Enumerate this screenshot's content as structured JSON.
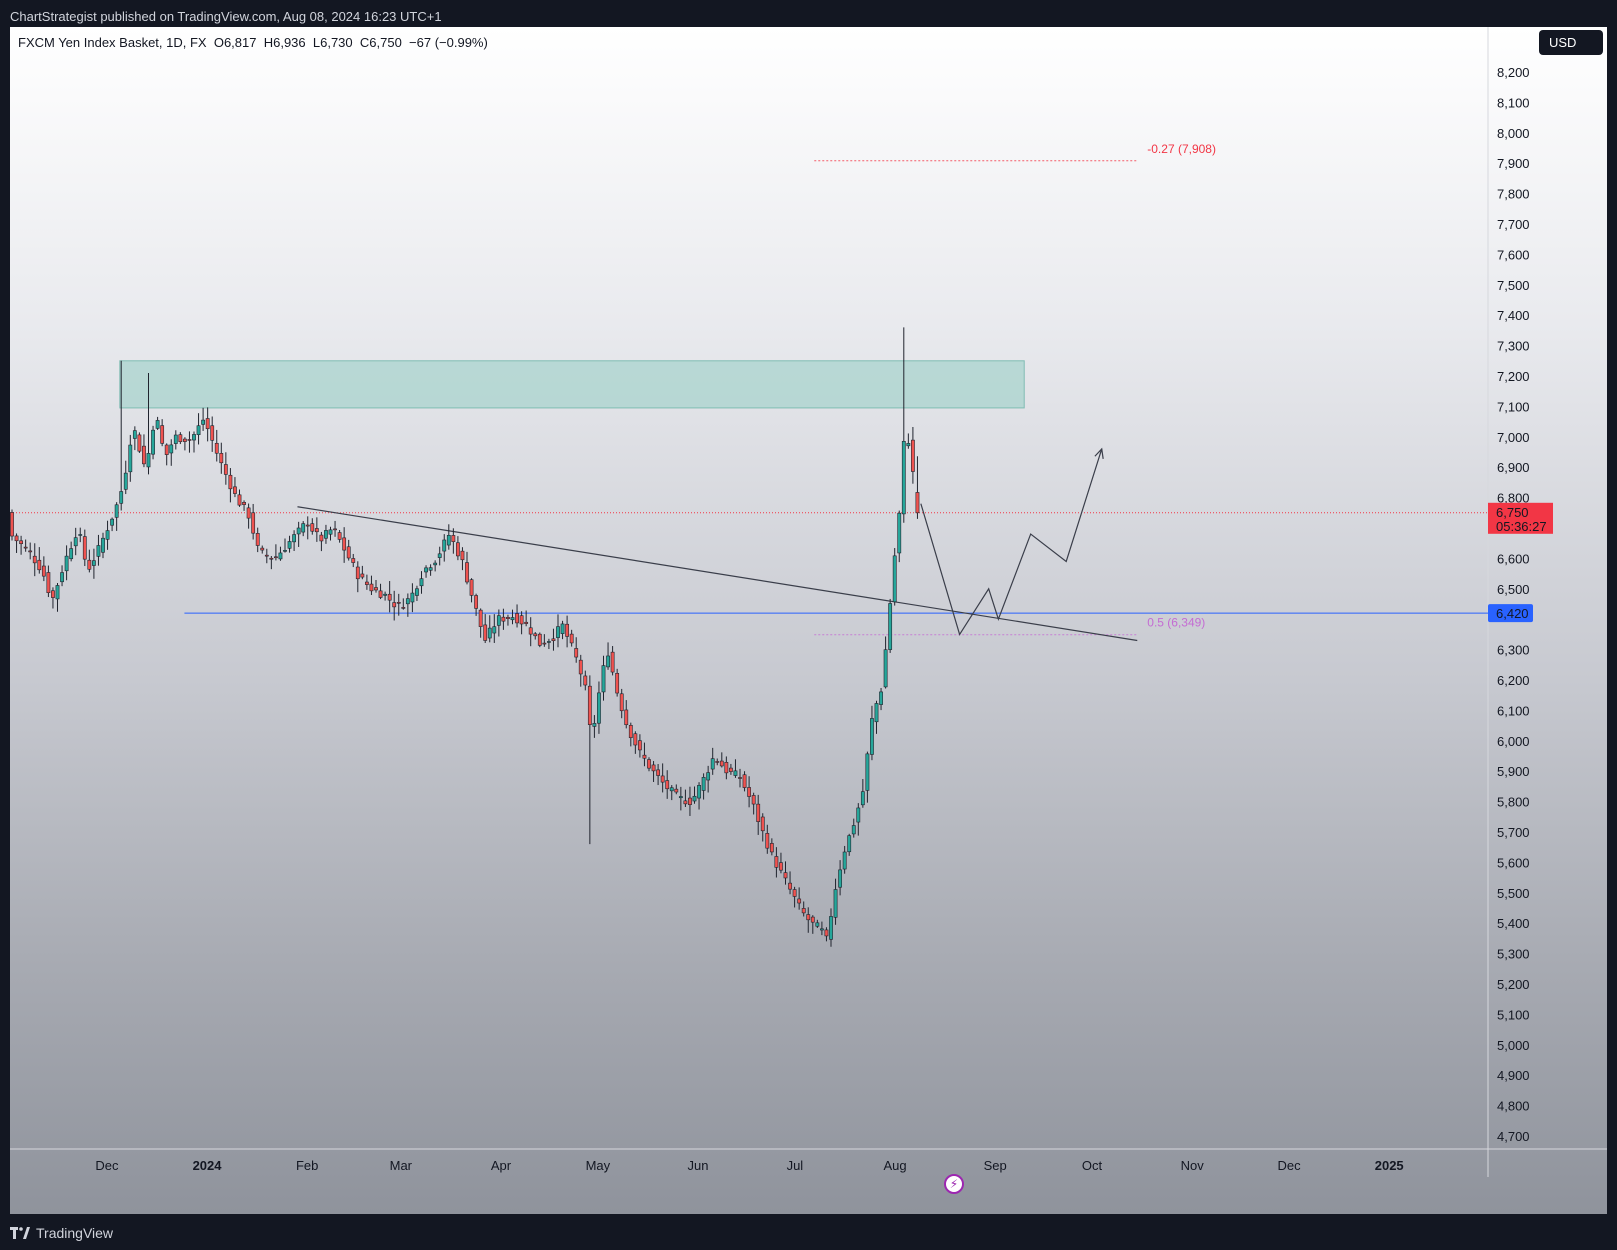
{
  "header": {
    "published_text": "ChartStrategist published on TradingView.com, Aug 08, 2024 16:23 UTC+1"
  },
  "footer": {
    "brand": "TradingView"
  },
  "legend": {
    "symbol": "FXCM Yen Index Basket, 1D, FX",
    "open": "O6,817",
    "high": "H6,936",
    "low": "L6,730",
    "close": "C6,750",
    "change": "−67 (−0.99%)"
  },
  "currency": "USD",
  "colors": {
    "up": "#26a69a",
    "down": "#ef5350",
    "zone": "#9fd1c9",
    "support": "#2962ff",
    "fib_neg": "#f23645",
    "fib_half": "#c46cd3",
    "price_badge": "#f23645",
    "support_badge": "#2962ff"
  },
  "chart_data": {
    "type": "candlestick",
    "y_axis": {
      "min": 4700,
      "max": 8200,
      "ticks": [
        "8,200",
        "8,100",
        "8,000",
        "7,900",
        "7,800",
        "7,700",
        "7,600",
        "7,500",
        "7,400",
        "7,300",
        "7,200",
        "7,100",
        "7,000",
        "6,900",
        "6,800",
        "6,600",
        "6,500",
        "6,300",
        "6,200",
        "6,100",
        "6,000",
        "5,900",
        "5,800",
        "5,700",
        "5,600",
        "5,500",
        "5,400",
        "5,300",
        "5,200",
        "5,100",
        "5,000",
        "4,900",
        "4,800",
        "4,700"
      ]
    },
    "x_axis": {
      "labels": [
        {
          "text": "Dec",
          "date": "2023-12-01"
        },
        {
          "text": "2024",
          "date": "2024-01-01",
          "bold": true
        },
        {
          "text": "Feb",
          "date": "2024-02-01"
        },
        {
          "text": "Mar",
          "date": "2024-03-01"
        },
        {
          "text": "Apr",
          "date": "2024-04-01"
        },
        {
          "text": "May",
          "date": "2024-05-01"
        },
        {
          "text": "Jun",
          "date": "2024-06-01"
        },
        {
          "text": "Jul",
          "date": "2024-07-01"
        },
        {
          "text": "Aug",
          "date": "2024-08-01"
        },
        {
          "text": "Sep",
          "date": "2024-09-01"
        },
        {
          "text": "Oct",
          "date": "2024-10-01"
        },
        {
          "text": "Nov",
          "date": "2024-11-01"
        },
        {
          "text": "Dec",
          "date": "2024-12-01"
        },
        {
          "text": "2025",
          "date": "2025-01-01",
          "bold": true
        }
      ]
    },
    "path": [
      [
        "2023-11-01",
        6680
      ],
      [
        "2023-11-07",
        6620
      ],
      [
        "2023-11-11",
        6560
      ],
      [
        "2023-11-14",
        6460
      ],
      [
        "2023-11-18",
        6590
      ],
      [
        "2023-11-22",
        6700
      ],
      [
        "2023-11-25",
        6560
      ],
      [
        "2023-11-28",
        6620
      ],
      [
        "2023-12-02",
        6720
      ],
      [
        "2023-12-05",
        6800
      ],
      [
        "2023-12-07",
        6900
      ],
      [
        "2023-12-09",
        7040
      ],
      [
        "2023-12-13",
        6890
      ],
      [
        "2023-12-16",
        7080
      ],
      [
        "2023-12-19",
        6930
      ],
      [
        "2023-12-22",
        7000
      ],
      [
        "2023-12-27",
        6990
      ],
      [
        "2023-12-31",
        7060
      ],
      [
        "2024-01-05",
        6920
      ],
      [
        "2024-01-10",
        6800
      ],
      [
        "2024-01-14",
        6740
      ],
      [
        "2024-01-17",
        6620
      ],
      [
        "2024-01-22",
        6600
      ],
      [
        "2024-01-27",
        6660
      ],
      [
        "2024-02-01",
        6720
      ],
      [
        "2024-02-05",
        6660
      ],
      [
        "2024-02-09",
        6700
      ],
      [
        "2024-02-13",
        6620
      ],
      [
        "2024-02-17",
        6540
      ],
      [
        "2024-02-21",
        6500
      ],
      [
        "2024-02-25",
        6480
      ],
      [
        "2024-02-29",
        6440
      ],
      [
        "2024-03-04",
        6470
      ],
      [
        "2024-03-08",
        6560
      ],
      [
        "2024-03-12",
        6600
      ],
      [
        "2024-03-16",
        6680
      ],
      [
        "2024-03-20",
        6590
      ],
      [
        "2024-03-24",
        6440
      ],
      [
        "2024-03-27",
        6330
      ],
      [
        "2024-03-31",
        6400
      ],
      [
        "2024-04-05",
        6410
      ],
      [
        "2024-04-09",
        6380
      ],
      [
        "2024-04-13",
        6320
      ],
      [
        "2024-04-17",
        6340
      ],
      [
        "2024-04-20",
        6380
      ],
      [
        "2024-04-24",
        6280
      ],
      [
        "2024-04-27",
        6180
      ],
      [
        "2024-04-29",
        6000
      ],
      [
        "2024-05-02",
        6200
      ],
      [
        "2024-05-04",
        6300
      ],
      [
        "2024-05-07",
        6160
      ],
      [
        "2024-05-10",
        6050
      ],
      [
        "2024-05-14",
        5960
      ],
      [
        "2024-05-18",
        5900
      ],
      [
        "2024-05-22",
        5850
      ],
      [
        "2024-05-26",
        5810
      ],
      [
        "2024-05-30",
        5800
      ],
      [
        "2024-06-03",
        5880
      ],
      [
        "2024-06-06",
        5950
      ],
      [
        "2024-06-10",
        5900
      ],
      [
        "2024-06-14",
        5880
      ],
      [
        "2024-06-18",
        5790
      ],
      [
        "2024-06-21",
        5700
      ],
      [
        "2024-06-24",
        5620
      ],
      [
        "2024-06-27",
        5560
      ],
      [
        "2024-06-30",
        5500
      ],
      [
        "2024-07-03",
        5440
      ],
      [
        "2024-07-06",
        5400
      ],
      [
        "2024-07-09",
        5380
      ],
      [
        "2024-07-11",
        5340
      ],
      [
        "2024-07-13",
        5490
      ],
      [
        "2024-07-16",
        5630
      ],
      [
        "2024-07-19",
        5720
      ],
      [
        "2024-07-22",
        5830
      ],
      [
        "2024-07-25",
        6080
      ],
      [
        "2024-07-28",
        6180
      ],
      [
        "2024-07-30",
        6400
      ],
      [
        "2024-08-01",
        6620
      ],
      [
        "2024-08-03",
        6810
      ],
      [
        "2024-08-04",
        7040
      ],
      [
        "2024-08-06",
        6950
      ],
      [
        "2024-08-07",
        6817
      ],
      [
        "2024-08-08",
        6750
      ]
    ],
    "highlights": [
      {
        "date": "2023-12-06",
        "high": 7250
      },
      {
        "date": "2023-12-14",
        "high": 7210
      },
      {
        "date": "2024-04-29",
        "low": 5660
      },
      {
        "date": "2024-08-04",
        "high": 7360
      }
    ],
    "last_price": {
      "value": 6750,
      "label": "6,750",
      "countdown": "05:36:27"
    },
    "support_level": {
      "value": 6420,
      "label": "6,420",
      "from": "2023-12-25"
    },
    "supply_zone": {
      "top": 7250,
      "bottom": 7095,
      "from": "2023-12-05",
      "to": "2024-09-10"
    },
    "trendline": {
      "from": [
        "2024-01-29",
        6770
      ],
      "to": [
        "2024-10-15",
        6330
      ]
    },
    "fib_levels": [
      {
        "label": "-0.27 (7,908)",
        "value": 7908,
        "from": "2024-07-07",
        "to": "2024-10-15"
      },
      {
        "label": "0.5 (6,349)",
        "value": 6349,
        "from": "2024-07-07",
        "to": "2024-10-15"
      }
    ],
    "projection": [
      [
        "2024-08-09",
        6780
      ],
      [
        "2024-08-21",
        6350
      ],
      [
        "2024-08-30",
        6500
      ],
      [
        "2024-09-02",
        6400
      ],
      [
        "2024-09-12",
        6680
      ],
      [
        "2024-09-23",
        6590
      ],
      [
        "2024-10-04",
        6960
      ]
    ]
  }
}
